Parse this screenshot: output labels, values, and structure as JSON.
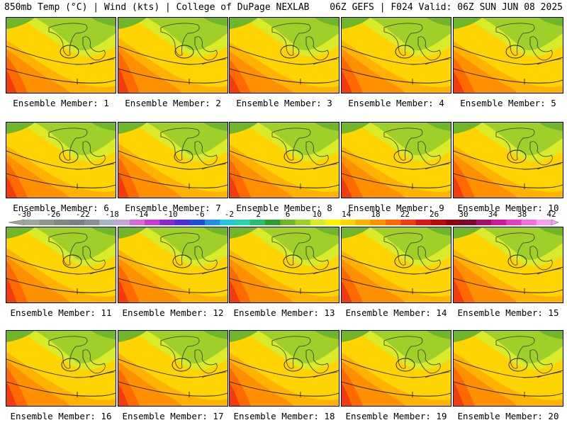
{
  "header": {
    "left": "850mb Temp (°C) | Wind (kts) | College of DuPage NEXLAB",
    "right": "06Z GEFS | F024 Valid: 06Z SUN JUN 08 2025"
  },
  "members": [
    {
      "label": "Ensemble Member: 1",
      "warm": 0.55
    },
    {
      "label": "Ensemble Member: 2",
      "warm": 0.75
    },
    {
      "label": "Ensemble Member: 3",
      "warm": 0.35
    },
    {
      "label": "Ensemble Member: 4",
      "warm": 0.55
    },
    {
      "label": "Ensemble Member: 5",
      "warm": 0.45
    },
    {
      "label": "Ensemble Member: 6",
      "warm": 0.5
    },
    {
      "label": "Ensemble Member: 7",
      "warm": 0.7
    },
    {
      "label": "Ensemble Member: 8",
      "warm": 0.6
    },
    {
      "label": "Ensemble Member: 9",
      "warm": 0.45
    },
    {
      "label": "Ensemble Member: 10",
      "warm": 0.55
    },
    {
      "label": "Ensemble Member: 11",
      "warm": 0.75
    },
    {
      "label": "Ensemble Member: 12",
      "warm": 0.6
    },
    {
      "label": "Ensemble Member: 13",
      "warm": 0.55
    },
    {
      "label": "Ensemble Member: 14",
      "warm": 0.5
    },
    {
      "label": "Ensemble Member: 15",
      "warm": 0.6
    },
    {
      "label": "Ensemble Member: 16",
      "warm": 0.65
    },
    {
      "label": "Ensemble Member: 17",
      "warm": 0.55
    },
    {
      "label": "Ensemble Member: 18",
      "warm": 0.6
    },
    {
      "label": "Ensemble Member: 19",
      "warm": 0.6
    },
    {
      "label": "Ensemble Member: 20",
      "warm": 0.65
    }
  ],
  "colorbar": {
    "ticks": [
      "-30",
      "-26",
      "-22",
      "-18",
      "-14",
      "-10",
      "-6",
      "-2",
      "2",
      "6",
      "10",
      "14",
      "18",
      "22",
      "26",
      "30",
      "34",
      "38",
      "42"
    ],
    "colors": [
      "#9aa79a",
      "#8c968c",
      "#808a80",
      "#7a7f85",
      "#8a8f96",
      "#a7b4c8",
      "#c3a5d6",
      "#d36bd6",
      "#c43dd0",
      "#8a28c8",
      "#4d2fd0",
      "#1f4fd6",
      "#1e8fe6",
      "#22c7e0",
      "#2ad2b4",
      "#27be6e",
      "#2f9e2f",
      "#6fb62a",
      "#9fd02a",
      "#d8ea28",
      "#fff200",
      "#ffd400",
      "#ffb300",
      "#ff9000",
      "#ff6a00",
      "#f23c10",
      "#d81818",
      "#b80c0c",
      "#8c0610",
      "#7a0a2a",
      "#a0106a",
      "#c81a9a",
      "#e040c0",
      "#f070e0",
      "#f8a0f0"
    ]
  }
}
